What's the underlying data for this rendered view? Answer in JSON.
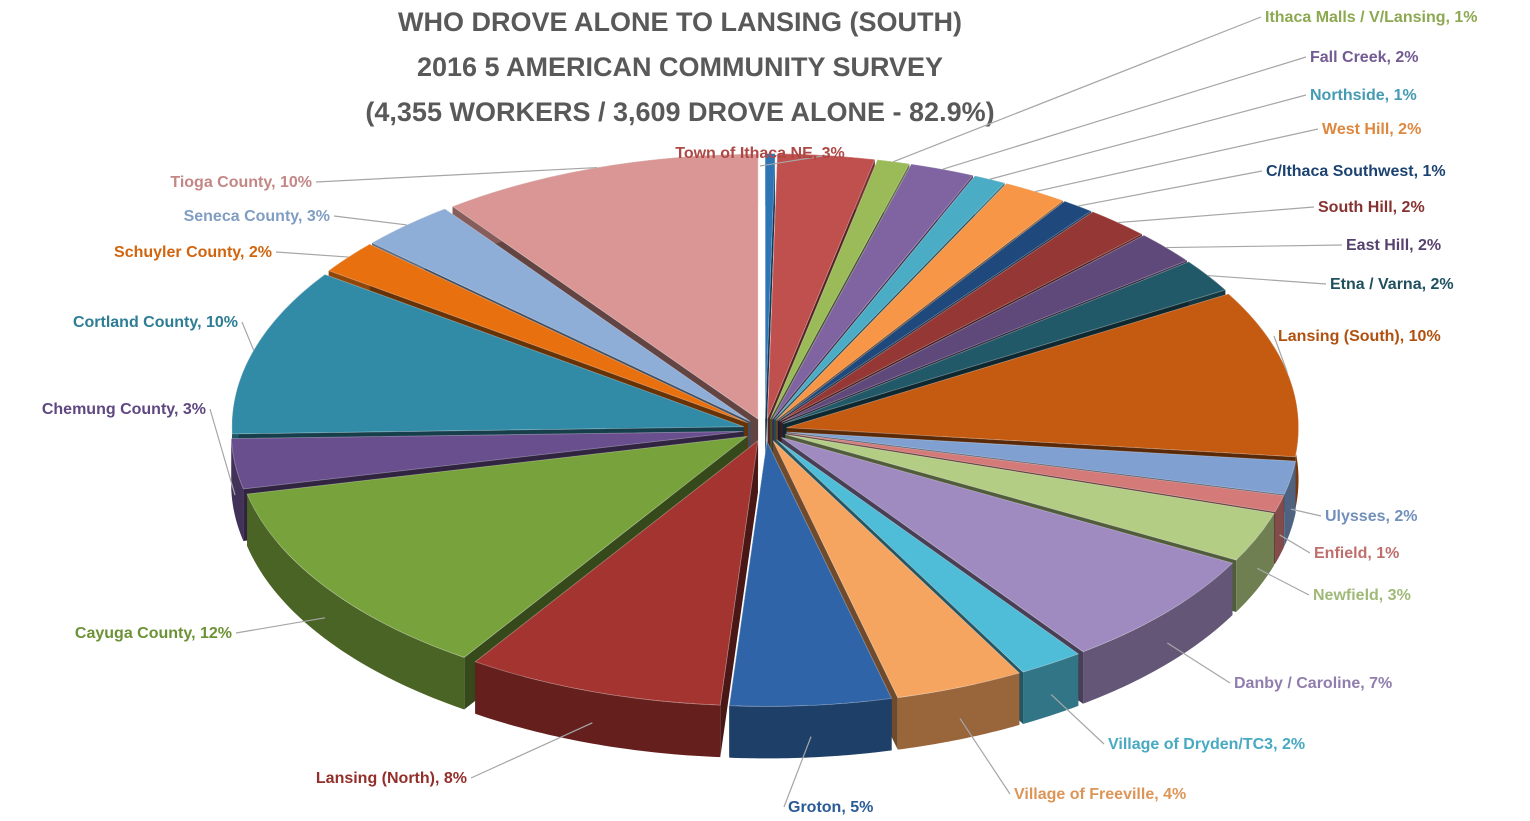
{
  "chart_data": {
    "type": "pie",
    "title": [
      "WHO DROVE ALONE TO LANSING (SOUTH)",
      "2016 5 AMERICAN COMMUNITY SURVEY",
      "(4,355 WORKERS / 3,609 DROVE ALONE - 82.9%)"
    ],
    "unit": "%",
    "slices": [
      {
        "label": "",
        "value": 0.3,
        "color": "#2e75b6",
        "label_text": ""
      },
      {
        "label": "Town of Ithaca NE",
        "value": 3,
        "color": "#c0504d",
        "label_text": "Town of Ithaca NE, 3%"
      },
      {
        "label": "Ithaca Malls / V/Lansing",
        "value": 1,
        "color": "#9bbb59",
        "label_text": "Ithaca Malls / V/Lansing, 1%"
      },
      {
        "label": "Fall Creek",
        "value": 2,
        "color": "#8064a2",
        "label_text": "Fall Creek, 2%"
      },
      {
        "label": "Northside",
        "value": 1,
        "color": "#4bacc6",
        "label_text": "Northside, 1%"
      },
      {
        "label": "West Hill",
        "value": 2,
        "color": "#f79646",
        "label_text": "West Hill, 2%"
      },
      {
        "label": "C/Ithaca Southwest",
        "value": 1,
        "color": "#1f497d",
        "label_text": "C/Ithaca Southwest, 1%"
      },
      {
        "label": "South Hill",
        "value": 2,
        "color": "#953735",
        "label_text": "South Hill, 2%"
      },
      {
        "label": "East Hill",
        "value": 2,
        "color": "#5f497a",
        "label_text": "East Hill, 2%"
      },
      {
        "label": "Etna / Varna",
        "value": 2,
        "color": "#215968",
        "label_text": "Etna / Varna, 2%"
      },
      {
        "label": "Lansing (South)",
        "value": 10,
        "color": "#c55a11",
        "label_text": "Lansing (South), 10%"
      },
      {
        "label": "Ulysses",
        "value": 2,
        "color": "#7fa0d0",
        "label_text": "Ulysses, 2%"
      },
      {
        "label": "Enfield",
        "value": 1,
        "color": "#d47a78",
        "label_text": "Enfield, 1%"
      },
      {
        "label": "Newfield",
        "value": 3,
        "color": "#b3cd85",
        "label_text": "Newfield, 3%"
      },
      {
        "label": "Danby / Caroline",
        "value": 7,
        "color": "#a08bc0",
        "label_text": "Danby / Caroline, 7%"
      },
      {
        "label": "Village of Dryden/TC3",
        "value": 2,
        "color": "#4fbcd8",
        "label_text": "Village of Dryden/TC3, 2%"
      },
      {
        "label": "Village of Freeville",
        "value": 4,
        "color": "#f6a561",
        "label_text": "Village of Freeville, 4%"
      },
      {
        "label": "Groton",
        "value": 5,
        "color": "#2f65a8",
        "label_text": "Groton, 5%"
      },
      {
        "label": "Lansing (North)",
        "value": 8,
        "color": "#a33430",
        "label_text": "Lansing (North), 8%"
      },
      {
        "label": "Cayuga County",
        "value": 12,
        "color": "#78a23c",
        "label_text": "Cayuga County, 12%"
      },
      {
        "label": "Chemung County",
        "value": 3,
        "color": "#6a4f8f",
        "label_text": "Chemung County, 3%"
      },
      {
        "label": "Cortland County",
        "value": 10,
        "color": "#318ba6",
        "label_text": "Cortland County, 10%"
      },
      {
        "label": "Schuyler County",
        "value": 2,
        "color": "#e8700f",
        "label_text": "Schuyler County, 2%"
      },
      {
        "label": "Seneca County",
        "value": 3,
        "color": "#8eaed8",
        "label_text": "Seneca County, 3%"
      },
      {
        "label": "Tioga County",
        "value": 10,
        "color": "#d99694",
        "label_text": "Tioga County, 10%"
      }
    ]
  }
}
